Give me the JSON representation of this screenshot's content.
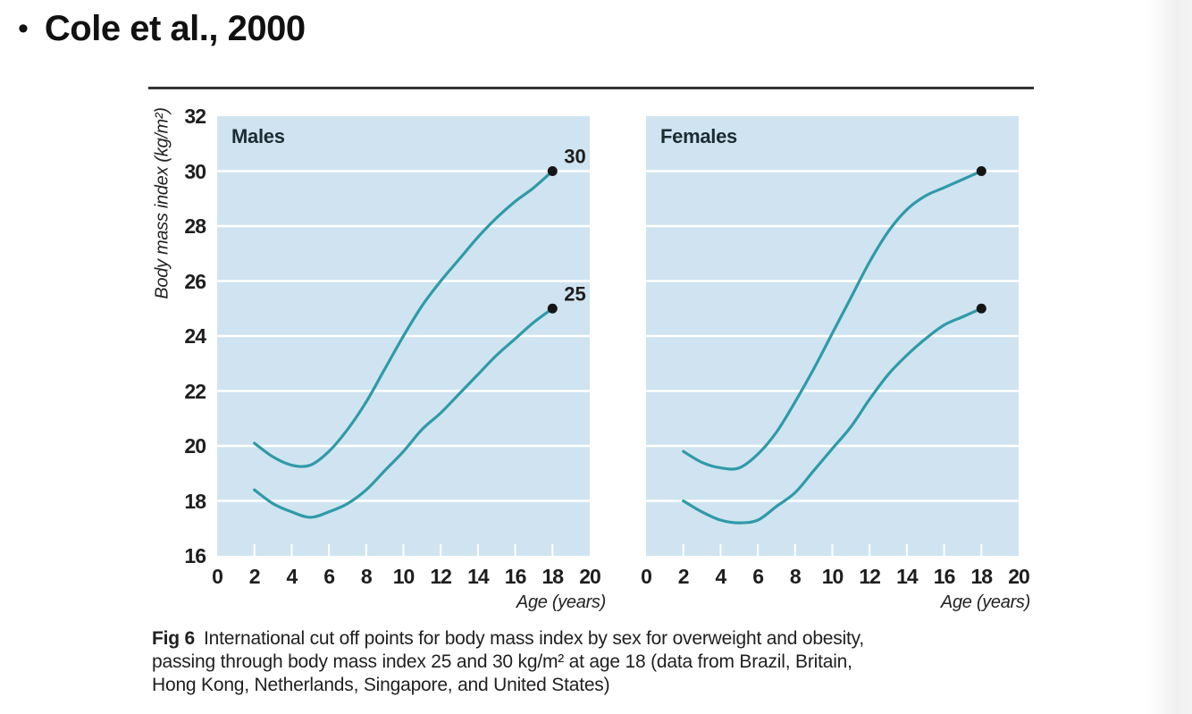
{
  "title": {
    "bullet": "•",
    "text": "Cole et al., 2000"
  },
  "figure": {
    "caption": {
      "label": "Fig 6",
      "line1": "International cut off points for body mass index by sex for overweight and obesity,",
      "line2": "passing through body mass index 25 and 30 kg/m² at age 18 (data from Brazil, Britain,",
      "line3": "Hong Kong, Netherlands, Singapore, and United States)"
    }
  },
  "colors": {
    "plot_bg": "#cfe4f0",
    "grid": "#ffffff",
    "line": "#2f9aa8",
    "dot": "#151515",
    "text": "#1e1e1e",
    "panel_label": "#1d2b33",
    "rule": "#333333"
  },
  "chart_data": [
    {
      "type": "line",
      "title": "Males",
      "xlabel": "Age (years)",
      "ylabel": "Body mass index (kg/m²)",
      "xlim": [
        0,
        20
      ],
      "ylim": [
        16,
        32
      ],
      "x_ticks": [
        0,
        2,
        4,
        6,
        8,
        10,
        12,
        14,
        16,
        18,
        20
      ],
      "y_ticks": [
        16,
        18,
        20,
        22,
        24,
        26,
        28,
        30,
        32
      ],
      "grid": true,
      "legend": "none",
      "show_y_tick_labels": true,
      "ages": [
        2,
        3,
        4,
        5,
        6,
        7,
        8,
        9,
        10,
        11,
        12,
        13,
        14,
        15,
        16,
        17,
        18
      ],
      "series": [
        {
          "name": "obesity cut off (BMI 30 at age 18)",
          "end_label": "30",
          "values": [
            20.1,
            19.6,
            19.3,
            19.3,
            19.8,
            20.6,
            21.6,
            22.8,
            24.0,
            25.1,
            26.0,
            26.8,
            27.6,
            28.3,
            28.9,
            29.4,
            30.0
          ]
        },
        {
          "name": "overweight cut off (BMI 25 at age 18)",
          "end_label": "25",
          "values": [
            18.4,
            17.9,
            17.6,
            17.4,
            17.6,
            17.9,
            18.4,
            19.1,
            19.8,
            20.6,
            21.2,
            21.9,
            22.6,
            23.3,
            23.9,
            24.5,
            25.0
          ]
        }
      ]
    },
    {
      "type": "line",
      "title": "Females",
      "xlabel": "Age (years)",
      "ylabel": "",
      "xlim": [
        0,
        20
      ],
      "ylim": [
        16,
        32
      ],
      "x_ticks": [
        0,
        2,
        4,
        6,
        8,
        10,
        12,
        14,
        16,
        18,
        20
      ],
      "y_ticks": [
        16,
        18,
        20,
        22,
        24,
        26,
        28,
        30,
        32
      ],
      "grid": true,
      "legend": "none",
      "show_y_tick_labels": false,
      "ages": [
        2,
        3,
        4,
        5,
        6,
        7,
        8,
        9,
        10,
        11,
        12,
        13,
        14,
        15,
        16,
        17,
        18
      ],
      "series": [
        {
          "name": "obesity cut off (BMI 30 at age 18)",
          "end_label": "",
          "values": [
            19.8,
            19.4,
            19.2,
            19.2,
            19.7,
            20.5,
            21.6,
            22.8,
            24.1,
            25.4,
            26.7,
            27.8,
            28.6,
            29.1,
            29.4,
            29.7,
            30.0
          ]
        },
        {
          "name": "overweight cut off (BMI 25 at age 18)",
          "end_label": "",
          "values": [
            18.0,
            17.6,
            17.3,
            17.2,
            17.3,
            17.8,
            18.3,
            19.1,
            19.9,
            20.7,
            21.7,
            22.6,
            23.3,
            23.9,
            24.4,
            24.7,
            25.0
          ]
        }
      ]
    }
  ]
}
